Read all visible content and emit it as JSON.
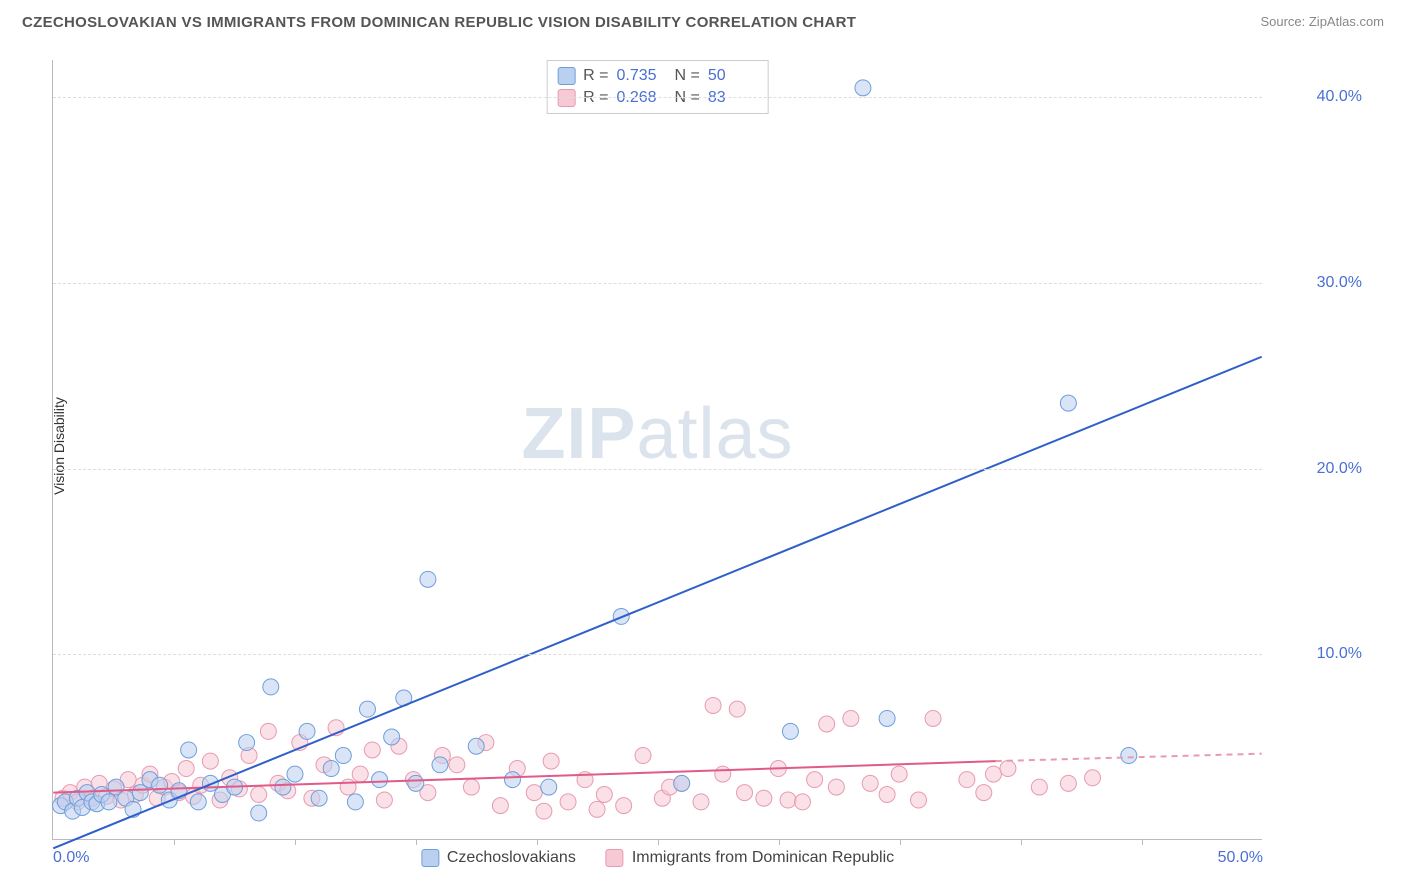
{
  "title": "CZECHOSLOVAKIAN VS IMMIGRANTS FROM DOMINICAN REPUBLIC VISION DISABILITY CORRELATION CHART",
  "source": "Source: ZipAtlas.com",
  "ylabel": "Vision Disability",
  "watermark_zip": "ZIP",
  "watermark_atlas": "atlas",
  "chart": {
    "type": "scatter",
    "xlim": [
      0,
      50
    ],
    "ylim": [
      0,
      42
    ],
    "xticks": [
      0,
      50
    ],
    "xtick_labels": [
      "0.0%",
      "50.0%"
    ],
    "xtick_marks": [
      5,
      10,
      15,
      20,
      25,
      30,
      35,
      40,
      45
    ],
    "yticks": [
      10,
      20,
      30,
      40
    ],
    "ytick_labels": [
      "10.0%",
      "20.0%",
      "30.0%",
      "40.0%"
    ],
    "background_color": "#ffffff",
    "grid_color": "#dddddd",
    "axis_color": "#bbbbbb",
    "tick_label_color": "#4a6fd4",
    "marker_radius": 8,
    "marker_opacity": 0.55,
    "trend_line_width": 2
  },
  "series": {
    "a": {
      "label": "Czechoslovakians",
      "color_fill": "#b9d0f0",
      "color_stroke": "#6f9edb",
      "R_label": "R =",
      "R": "0.735",
      "N_label": "N =",
      "N": "50",
      "trend": {
        "x1": 0,
        "y1": -0.5,
        "x2": 50,
        "y2": 26,
        "dash_after_x": 50
      },
      "points": [
        [
          0.3,
          1.8
        ],
        [
          0.5,
          2.0
        ],
        [
          0.8,
          1.5
        ],
        [
          1.0,
          2.2
        ],
        [
          1.2,
          1.7
        ],
        [
          1.4,
          2.5
        ],
        [
          1.6,
          2.0
        ],
        [
          1.8,
          1.9
        ],
        [
          2.0,
          2.4
        ],
        [
          2.3,
          2.0
        ],
        [
          2.6,
          2.8
        ],
        [
          3.0,
          2.2
        ],
        [
          3.3,
          1.6
        ],
        [
          3.6,
          2.5
        ],
        [
          4.0,
          3.2
        ],
        [
          4.4,
          2.9
        ],
        [
          4.8,
          2.1
        ],
        [
          5.2,
          2.6
        ],
        [
          5.6,
          4.8
        ],
        [
          6.0,
          2.0
        ],
        [
          6.5,
          3.0
        ],
        [
          7.0,
          2.4
        ],
        [
          7.5,
          2.8
        ],
        [
          8.0,
          5.2
        ],
        [
          8.5,
          1.4
        ],
        [
          9.0,
          8.2
        ],
        [
          9.5,
          2.8
        ],
        [
          10.0,
          3.5
        ],
        [
          10.5,
          5.8
        ],
        [
          11.0,
          2.2
        ],
        [
          11.5,
          3.8
        ],
        [
          12.0,
          4.5
        ],
        [
          12.5,
          2.0
        ],
        [
          13.0,
          7.0
        ],
        [
          13.5,
          3.2
        ],
        [
          14.0,
          5.5
        ],
        [
          14.5,
          7.6
        ],
        [
          15.0,
          3.0
        ],
        [
          15.5,
          14.0
        ],
        [
          16.0,
          4.0
        ],
        [
          17.5,
          5.0
        ],
        [
          19.0,
          3.2
        ],
        [
          20.5,
          2.8
        ],
        [
          23.5,
          12.0
        ],
        [
          26.0,
          3.0
        ],
        [
          30.5,
          5.8
        ],
        [
          33.5,
          40.5
        ],
        [
          34.5,
          6.5
        ],
        [
          42.0,
          23.5
        ],
        [
          44.5,
          4.5
        ]
      ]
    },
    "b": {
      "label": "Immigrants from Dominican Republic",
      "color_fill": "#f6c9d4",
      "color_stroke": "#e89ab0",
      "R_label": "R =",
      "R": "0.268",
      "N_label": "N =",
      "N": "83",
      "trend": {
        "x1": 0,
        "y1": 2.5,
        "x2": 39,
        "y2": 4.2,
        "dash_after_x": 39,
        "x3": 50,
        "y3": 4.6
      },
      "points": [
        [
          0.4,
          2.2
        ],
        [
          0.7,
          2.5
        ],
        [
          1.0,
          2.0
        ],
        [
          1.3,
          2.8
        ],
        [
          1.6,
          2.2
        ],
        [
          1.9,
          3.0
        ],
        [
          2.2,
          2.3
        ],
        [
          2.5,
          2.7
        ],
        [
          2.8,
          2.1
        ],
        [
          3.1,
          3.2
        ],
        [
          3.4,
          2.4
        ],
        [
          3.7,
          2.9
        ],
        [
          4.0,
          3.5
        ],
        [
          4.3,
          2.2
        ],
        [
          4.6,
          2.8
        ],
        [
          4.9,
          3.1
        ],
        [
          5.2,
          2.5
        ],
        [
          5.5,
          3.8
        ],
        [
          5.8,
          2.3
        ],
        [
          6.1,
          2.9
        ],
        [
          6.5,
          4.2
        ],
        [
          6.9,
          2.1
        ],
        [
          7.3,
          3.3
        ],
        [
          7.7,
          2.7
        ],
        [
          8.1,
          4.5
        ],
        [
          8.5,
          2.4
        ],
        [
          8.9,
          5.8
        ],
        [
          9.3,
          3.0
        ],
        [
          9.7,
          2.6
        ],
        [
          10.2,
          5.2
        ],
        [
          10.7,
          2.2
        ],
        [
          11.2,
          4.0
        ],
        [
          11.7,
          6.0
        ],
        [
          12.2,
          2.8
        ],
        [
          12.7,
          3.5
        ],
        [
          13.2,
          4.8
        ],
        [
          13.7,
          2.1
        ],
        [
          14.3,
          5.0
        ],
        [
          14.9,
          3.2
        ],
        [
          15.5,
          2.5
        ],
        [
          16.1,
          4.5
        ],
        [
          16.7,
          4.0
        ],
        [
          17.3,
          2.8
        ],
        [
          17.9,
          5.2
        ],
        [
          18.5,
          1.8
        ],
        [
          19.2,
          3.8
        ],
        [
          19.9,
          2.5
        ],
        [
          20.3,
          1.5
        ],
        [
          20.6,
          4.2
        ],
        [
          21.3,
          2.0
        ],
        [
          22.0,
          3.2
        ],
        [
          22.5,
          1.6
        ],
        [
          22.8,
          2.4
        ],
        [
          23.6,
          1.8
        ],
        [
          24.4,
          4.5
        ],
        [
          25.2,
          2.2
        ],
        [
          25.5,
          2.8
        ],
        [
          26.0,
          3.0
        ],
        [
          26.8,
          2.0
        ],
        [
          27.3,
          7.2
        ],
        [
          27.7,
          3.5
        ],
        [
          28.3,
          7.0
        ],
        [
          28.6,
          2.5
        ],
        [
          29.4,
          2.2
        ],
        [
          30.0,
          3.8
        ],
        [
          30.4,
          2.1
        ],
        [
          31.0,
          2.0
        ],
        [
          31.5,
          3.2
        ],
        [
          32.0,
          6.2
        ],
        [
          32.4,
          2.8
        ],
        [
          33.0,
          6.5
        ],
        [
          33.8,
          3.0
        ],
        [
          34.5,
          2.4
        ],
        [
          35.0,
          3.5
        ],
        [
          35.8,
          2.1
        ],
        [
          36.4,
          6.5
        ],
        [
          37.8,
          3.2
        ],
        [
          38.5,
          2.5
        ],
        [
          38.9,
          3.5
        ],
        [
          39.5,
          3.8
        ],
        [
          40.8,
          2.8
        ],
        [
          42.0,
          3.0
        ],
        [
          43.0,
          3.3
        ]
      ]
    }
  }
}
